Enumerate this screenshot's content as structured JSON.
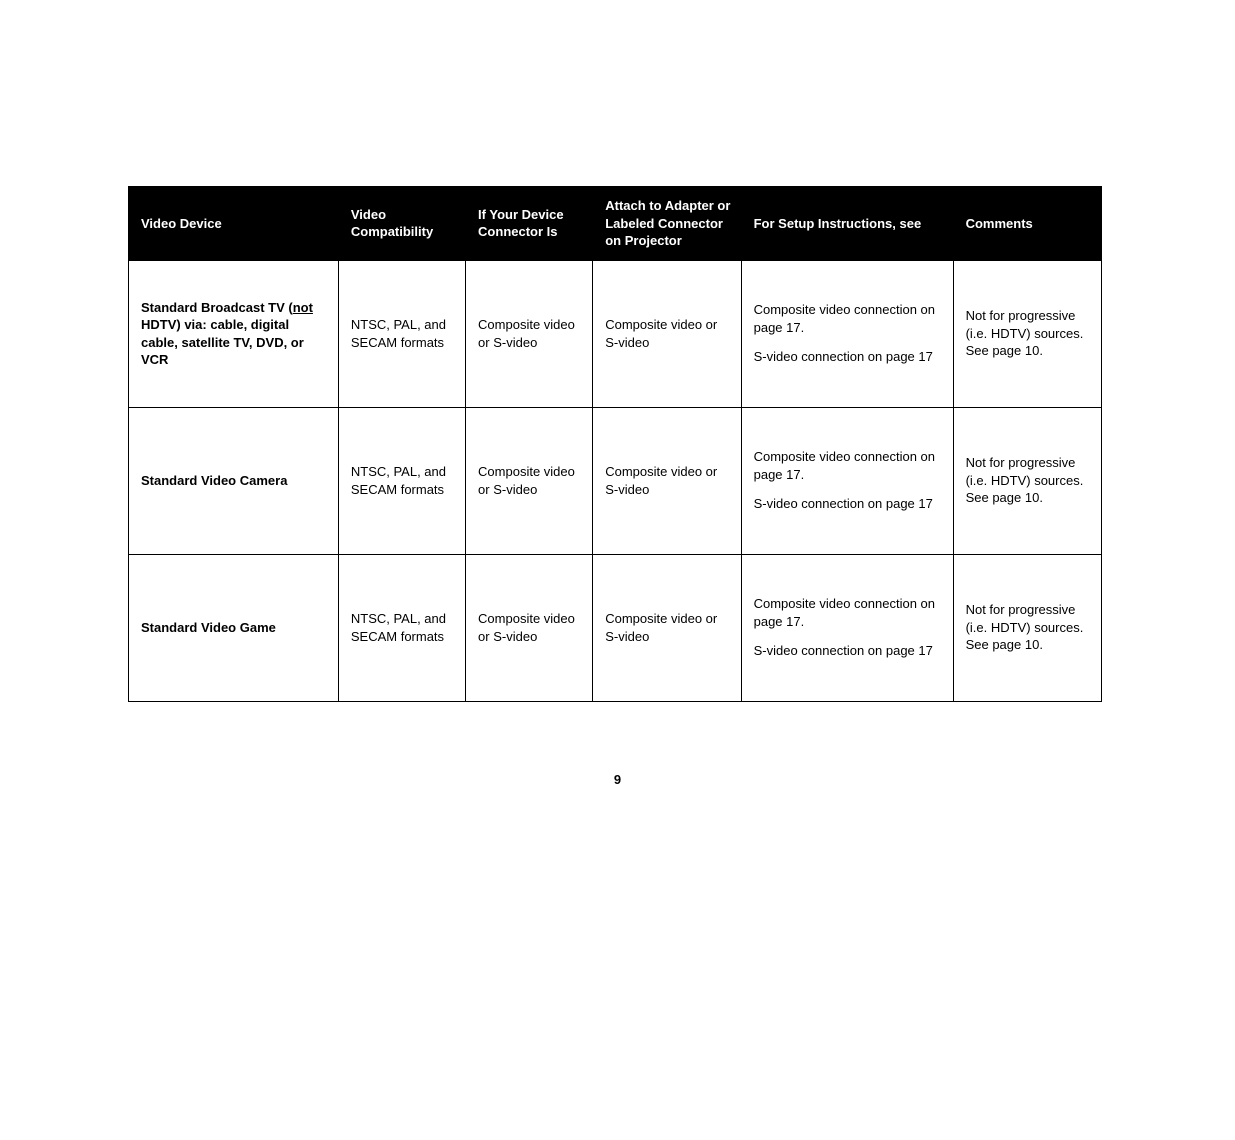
{
  "table": {
    "headers": {
      "device": "Video Device",
      "compat": "Video Compatibility",
      "ifconn": "If Your Device Connector Is",
      "attach": "Attach to Adapter or Labeled Connector on Projector",
      "setup": "For Setup Instructions, see",
      "comments": "Comments"
    },
    "rows": [
      {
        "device_prefix": "Standard Broadcast TV (",
        "device_underlined": "not",
        "device_suffix": " HDTV) via: cable, digital cable, satellite TV, DVD, or VCR",
        "compat": "NTSC, PAL, and SECAM formats",
        "ifconn": "Composite video or S-video",
        "attach": "Composite video or S-video",
        "setup1": "Composite video connection on page 17.",
        "setup2": "S-video connection on page 17",
        "comments": "Not for progressive (i.e. HDTV) sources. See page 10."
      },
      {
        "device_plain": "Standard Video Camera",
        "compat": "NTSC, PAL, and SECAM formats",
        "ifconn": "Composite video or S-video",
        "attach": "Composite video or S-video",
        "setup1": "Composite video connection on page 17.",
        "setup2": "S-video connection on page 17",
        "comments": "Not for progressive (i.e. HDTV) sources. See page 10."
      },
      {
        "device_plain": "Standard Video Game",
        "compat": "NTSC, PAL, and SECAM formats",
        "ifconn": "Composite video or S-video",
        "attach": "Composite video or S-video",
        "setup1": "Composite video connection on page 17.",
        "setup2": "S-video connection on page 17",
        "comments": "Not for progressive (i.e. HDTV) sources. See page 10."
      }
    ]
  },
  "page_number": "9"
}
